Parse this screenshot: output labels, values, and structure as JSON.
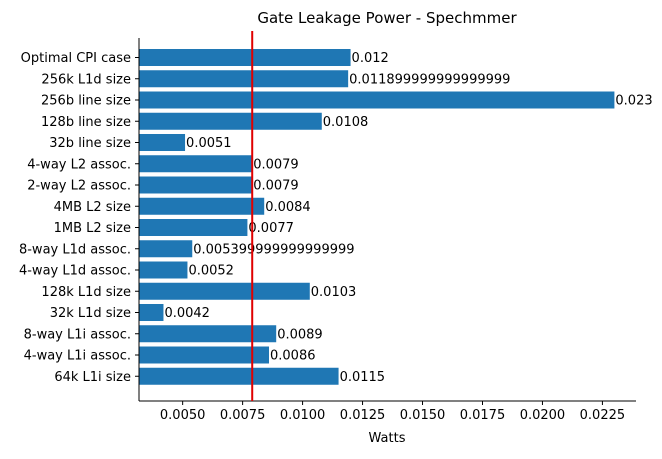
{
  "chart_data": {
    "type": "bar",
    "orientation": "horizontal",
    "title": "Gate Leakage Power - Spechmmer",
    "xlabel": "Watts",
    "ylabel": "",
    "xlim": [
      0.00318,
      0.0239
    ],
    "xticks": [
      0.005,
      0.0075,
      0.01,
      0.0125,
      0.015,
      0.0175,
      0.02,
      0.0225
    ],
    "xtick_labels": [
      "0.0050",
      "0.0075",
      "0.0100",
      "0.0125",
      "0.0150",
      "0.0175",
      "0.0200",
      "0.0225"
    ],
    "categories": [
      "Optimal CPI case",
      "256k L1d size",
      "256b line size",
      "128b line size",
      "32b line size",
      "4-way L2 assoc.",
      "2-way L2 assoc.",
      "4MB L2 size",
      "1MB L2 size",
      "8-way L1d assoc.",
      "4-way L1d assoc.",
      "128k L1d size",
      "32k L1d size",
      "8-way L1i assoc.",
      "4-way L1i assoc.",
      "64k L1i size"
    ],
    "values": [
      0.012,
      0.0119,
      0.023,
      0.0108,
      0.0051,
      0.0079,
      0.0079,
      0.0084,
      0.0077,
      0.0054,
      0.0052,
      0.0103,
      0.0042,
      0.0089,
      0.0086,
      0.0115
    ],
    "value_labels": [
      "0.012",
      "0.011899999999999999",
      "0.023",
      "0.0108",
      "0.0051",
      "0.0079",
      "0.0079",
      "0.0084",
      "0.0077",
      "0.005399999999999999",
      "0.0052",
      "0.0103",
      "0.0042",
      "0.0089",
      "0.0086",
      "0.0115"
    ],
    "reference_line": {
      "value": 0.0079,
      "color": "#e00000"
    },
    "bar_color": "#1f77b4",
    "grid": false,
    "legend": "none"
  }
}
